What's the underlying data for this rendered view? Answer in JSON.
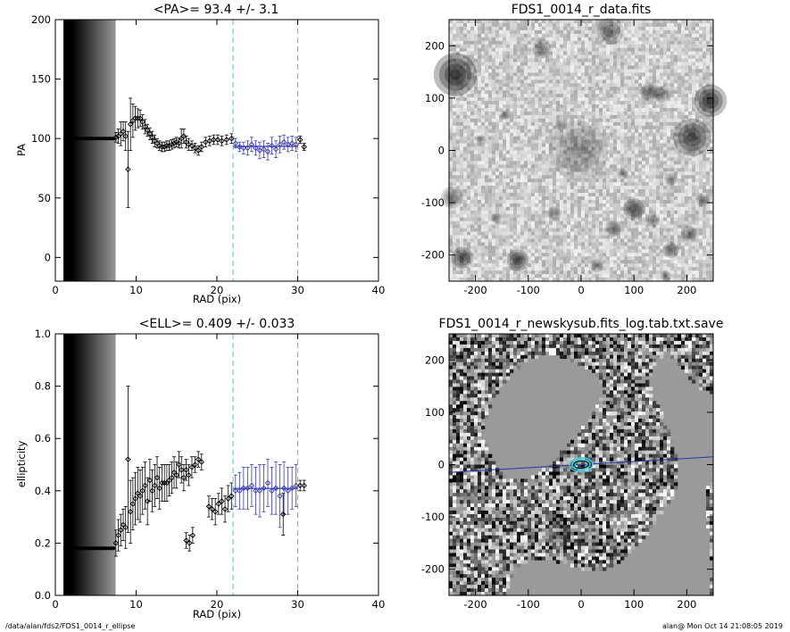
{
  "footer": {
    "left": "/data/alan/fds2/FDS1_0014_r_ellipse",
    "right": "alan@  Mon Oct 14 21:08:05 2019"
  },
  "colors": {
    "data_points": "#000000",
    "fit_points": "#3a3aa8",
    "fit_line": "#3030b0",
    "range_lines": "#3ecce0",
    "contours": "#40d0e0"
  },
  "chart_data": [
    {
      "id": "pa",
      "type": "scatter",
      "title": "<PA>=  93.4 +/-   3.1",
      "xlabel": "RAD (pix)",
      "ylabel": "PA",
      "xlim": [
        0,
        40
      ],
      "ylim": [
        -20,
        200
      ],
      "xticks": [
        0,
        10,
        20,
        30,
        40
      ],
      "yticks": [
        0,
        50,
        100,
        150,
        200
      ],
      "range_markers_x": [
        22,
        30
      ],
      "fit_value": 93.4,
      "fit_range_x": [
        22,
        30
      ],
      "shaded_region_x": [
        1,
        7.4
      ],
      "series": [
        {
          "x": [
            1.2,
            1.5,
            1.8,
            2.1,
            2.4,
            2.7,
            3.0,
            3.3,
            3.6,
            3.9,
            4.2,
            4.5,
            4.8,
            5.1,
            5.4,
            5.7,
            6.0,
            6.3,
            6.6,
            6.9,
            7.2,
            7.5,
            7.8,
            8.1,
            8.4,
            8.7,
            9.0,
            9.3,
            9.6,
            9.9,
            10.2,
            10.5,
            10.8,
            11.1,
            11.4,
            11.7,
            12.0,
            12.3,
            12.6,
            12.9,
            13.2,
            13.5,
            13.8,
            14.1,
            14.4,
            14.7,
            15.0,
            15.3,
            15.6,
            15.9,
            16.2,
            16.5,
            16.9,
            17.3,
            17.7,
            18.1,
            18.6,
            19.1,
            19.6,
            20.1,
            20.6,
            21.2,
            21.8
          ],
          "y": [
            100,
            100,
            100,
            100,
            100,
            100,
            100,
            100,
            100,
            100,
            100,
            100,
            100,
            100,
            100,
            100,
            100,
            100,
            100,
            100,
            100,
            101,
            102,
            104,
            106,
            102,
            74,
            112,
            115,
            117,
            117,
            117,
            114,
            110,
            107,
            104,
            101,
            98,
            96,
            94,
            93,
            93,
            94,
            94,
            95,
            96,
            97,
            96,
            100,
            102,
            97,
            95,
            94,
            92,
            90,
            93,
            97,
            98,
            99,
            99,
            98,
            99,
            100
          ],
          "err": [
            0,
            0,
            0,
            0,
            0,
            0,
            0,
            0,
            0,
            0,
            0,
            0,
            0,
            0,
            0,
            0,
            0,
            0,
            0,
            0,
            0,
            4,
            6,
            10,
            8,
            12,
            32,
            22,
            14,
            10,
            8,
            7,
            6,
            6,
            5,
            5,
            5,
            5,
            4,
            4,
            4,
            4,
            4,
            4,
            4,
            4,
            4,
            4,
            8,
            6,
            5,
            5,
            4,
            4,
            4,
            4,
            4,
            4,
            4,
            4,
            4,
            4,
            4
          ]
        },
        {
          "name": "fit range",
          "x": [
            22.3,
            22.8,
            23.3,
            23.8,
            24.3,
            24.8,
            25.3,
            25.8,
            26.3,
            26.8,
            27.3,
            27.8,
            28.3,
            28.8,
            29.3,
            29.8
          ],
          "y": [
            96,
            93,
            92,
            92,
            95,
            92,
            90,
            91,
            89,
            94,
            91,
            95,
            97,
            95,
            96,
            95
          ],
          "err": [
            4,
            4,
            5,
            6,
            6,
            6,
            7,
            7,
            7,
            7,
            7,
            7,
            6,
            6,
            6,
            6
          ]
        },
        {
          "x": [
            30.3,
            30.8
          ],
          "y": [
            99,
            93
          ],
          "err": [
            3,
            3
          ]
        }
      ]
    },
    {
      "id": "ell",
      "type": "scatter",
      "title": "<ELL>= 0.409 +/-  0.033",
      "xlabel": "RAD (pix)",
      "ylabel": "ellipticity",
      "xlim": [
        0,
        40
      ],
      "ylim": [
        0,
        1
      ],
      "xticks": [
        0,
        10,
        20,
        30,
        40
      ],
      "yticks": [
        0.0,
        0.2,
        0.4,
        0.6,
        0.8,
        1.0
      ],
      "ytick_labels": [
        "0.0",
        "0.2",
        "0.4",
        "0.6",
        "0.8",
        "1.0"
      ],
      "range_markers_x": [
        22,
        30
      ],
      "fit_value": 0.409,
      "fit_range_x": [
        22,
        30
      ],
      "shaded_region_x": [
        1,
        7.4
      ],
      "series": [
        {
          "x": [
            1.2,
            1.5,
            1.8,
            2.1,
            2.4,
            2.7,
            3.0,
            3.3,
            3.6,
            3.9,
            4.2,
            4.5,
            4.8,
            5.1,
            5.4,
            5.7,
            6.0,
            6.3,
            6.6,
            6.9,
            7.2,
            7.5,
            7.8,
            8.1,
            8.4,
            8.7,
            9.0,
            9.3,
            9.6,
            9.9,
            10.2,
            10.5,
            10.8,
            11.1,
            11.4,
            11.7,
            12.0,
            12.3,
            12.6,
            12.9,
            13.2,
            13.5,
            13.8,
            14.1,
            14.4,
            14.7,
            15.0,
            15.3,
            15.6,
            15.9,
            16.2,
            16.5,
            16.9,
            17.3,
            17.7,
            18.1
          ],
          "y": [
            0.18,
            0.18,
            0.18,
            0.18,
            0.18,
            0.18,
            0.18,
            0.18,
            0.18,
            0.18,
            0.18,
            0.18,
            0.18,
            0.18,
            0.18,
            0.18,
            0.18,
            0.18,
            0.18,
            0.18,
            0.18,
            0.2,
            0.23,
            0.25,
            0.27,
            0.26,
            0.52,
            0.32,
            0.35,
            0.37,
            0.39,
            0.38,
            0.4,
            0.42,
            0.36,
            0.44,
            0.4,
            0.42,
            0.45,
            0.41,
            0.43,
            0.43,
            0.43,
            0.44,
            0.45,
            0.47,
            0.46,
            0.5,
            0.48,
            0.45,
            0.48,
            0.46,
            0.49,
            0.5,
            0.52,
            0.51
          ],
          "err": [
            0,
            0,
            0,
            0,
            0,
            0,
            0,
            0,
            0,
            0,
            0,
            0,
            0,
            0,
            0,
            0,
            0,
            0,
            0,
            0,
            0,
            0.05,
            0.06,
            0.06,
            0.06,
            0.08,
            0.28,
            0.12,
            0.1,
            0.1,
            0.1,
            0.1,
            0.09,
            0.09,
            0.09,
            0.08,
            0.08,
            0.08,
            0.08,
            0.08,
            0.07,
            0.07,
            0.07,
            0.06,
            0.06,
            0.06,
            0.05,
            0.05,
            0.05,
            0.05,
            0.04,
            0.04,
            0.04,
            0.03,
            0.03,
            0.03
          ]
        },
        {
          "x": [
            16.2,
            16.6,
            17.0,
            19.0,
            19.4,
            19.8,
            20.2,
            20.6,
            21.0,
            21.4,
            21.8
          ],
          "y": [
            0.21,
            0.2,
            0.23,
            0.34,
            0.33,
            0.32,
            0.35,
            0.36,
            0.33,
            0.37,
            0.38
          ],
          "err": [
            0.03,
            0.03,
            0.03,
            0.04,
            0.04,
            0.05,
            0.04,
            0.05,
            0.05,
            0.05,
            0.05
          ]
        },
        {
          "name": "fit range",
          "x": [
            22.3,
            22.8,
            23.3,
            23.8,
            24.3,
            24.8,
            25.3,
            25.8,
            26.3,
            26.8,
            27.3,
            27.8,
            28.3,
            28.8,
            29.3,
            29.8
          ],
          "y": [
            0.4,
            0.4,
            0.41,
            0.41,
            0.42,
            0.4,
            0.4,
            0.41,
            0.43,
            0.4,
            0.41,
            0.38,
            0.41,
            0.4,
            0.41,
            0.42
          ],
          "err": [
            0.06,
            0.07,
            0.08,
            0.08,
            0.08,
            0.09,
            0.1,
            0.09,
            0.09,
            0.09,
            0.1,
            0.12,
            0.1,
            0.09,
            0.08,
            0.08
          ]
        },
        {
          "x": [
            28.2,
            30.3,
            30.8
          ],
          "y": [
            0.31,
            0.42,
            0.42
          ],
          "err": [
            0.08,
            0.02,
            0.02
          ]
        }
      ]
    },
    {
      "id": "data-image",
      "type": "heatmap",
      "title": "FDS1_0014_r_data.fits",
      "xlim": [
        -250,
        250
      ],
      "ylim": [
        -250,
        250
      ],
      "xticks": [
        -200,
        -100,
        0,
        100,
        200
      ],
      "yticks": [
        -200,
        -100,
        0,
        100,
        200
      ],
      "sources": [
        {
          "x": -238,
          "y": 145,
          "r": 16,
          "a": 0.95
        },
        {
          "x": 245,
          "y": 95,
          "r": 12,
          "a": 0.9
        },
        {
          "x": 210,
          "y": 25,
          "r": 14,
          "a": 0.8
        },
        {
          "x": 55,
          "y": 228,
          "r": 10,
          "a": 0.55
        },
        {
          "x": -5,
          "y": 0,
          "r": 22,
          "a": 0.35
        },
        {
          "x": -75,
          "y": 195,
          "r": 7,
          "a": 0.5
        },
        {
          "x": 130,
          "y": 112,
          "r": 7,
          "a": 0.6
        },
        {
          "x": 152,
          "y": 108,
          "r": 6,
          "a": 0.55
        },
        {
          "x": 100,
          "y": -112,
          "r": 8,
          "a": 0.7
        },
        {
          "x": -120,
          "y": -210,
          "r": 8,
          "a": 0.8
        },
        {
          "x": -225,
          "y": -205,
          "r": 8,
          "a": 0.75
        },
        {
          "x": -245,
          "y": -90,
          "r": 8,
          "a": 0.55
        },
        {
          "x": 60,
          "y": -150,
          "r": 6,
          "a": 0.55
        },
        {
          "x": 170,
          "y": -190,
          "r": 6,
          "a": 0.6
        },
        {
          "x": 205,
          "y": -160,
          "r": 6,
          "a": 0.5
        },
        {
          "x": 135,
          "y": -135,
          "r": 5,
          "a": 0.5
        },
        {
          "x": -50,
          "y": -120,
          "r": 5,
          "a": 0.45
        },
        {
          "x": 80,
          "y": -45,
          "r": 4,
          "a": 0.4
        },
        {
          "x": -145,
          "y": 68,
          "r": 4,
          "a": 0.4
        },
        {
          "x": -40,
          "y": 48,
          "r": 4,
          "a": 0.35
        },
        {
          "x": 170,
          "y": -55,
          "r": 5,
          "a": 0.45
        },
        {
          "x": 230,
          "y": -95,
          "r": 5,
          "a": 0.45
        },
        {
          "x": 30,
          "y": -220,
          "r": 5,
          "a": 0.45
        },
        {
          "x": -160,
          "y": -130,
          "r": 4,
          "a": 0.4
        },
        {
          "x": 160,
          "y": -240,
          "r": 4,
          "a": 0.45
        },
        {
          "x": -190,
          "y": 20,
          "r": 4,
          "a": 0.35
        }
      ]
    },
    {
      "id": "residual-image",
      "type": "heatmap",
      "title": "FDS1_0014_r_newskysub.fits_log.tab.txt.save",
      "xlim": [
        -250,
        250
      ],
      "ylim": [
        -250,
        250
      ],
      "xticks": [
        -200,
        -100,
        0,
        100,
        200
      ],
      "yticks": [
        -200,
        -100,
        0,
        100,
        200
      ],
      "pa_line_deg": 3.4,
      "contours": [
        {
          "a": 12,
          "b": 7
        },
        {
          "a": 17,
          "b": 10
        },
        {
          "a": 22,
          "b": 13
        }
      ]
    }
  ]
}
